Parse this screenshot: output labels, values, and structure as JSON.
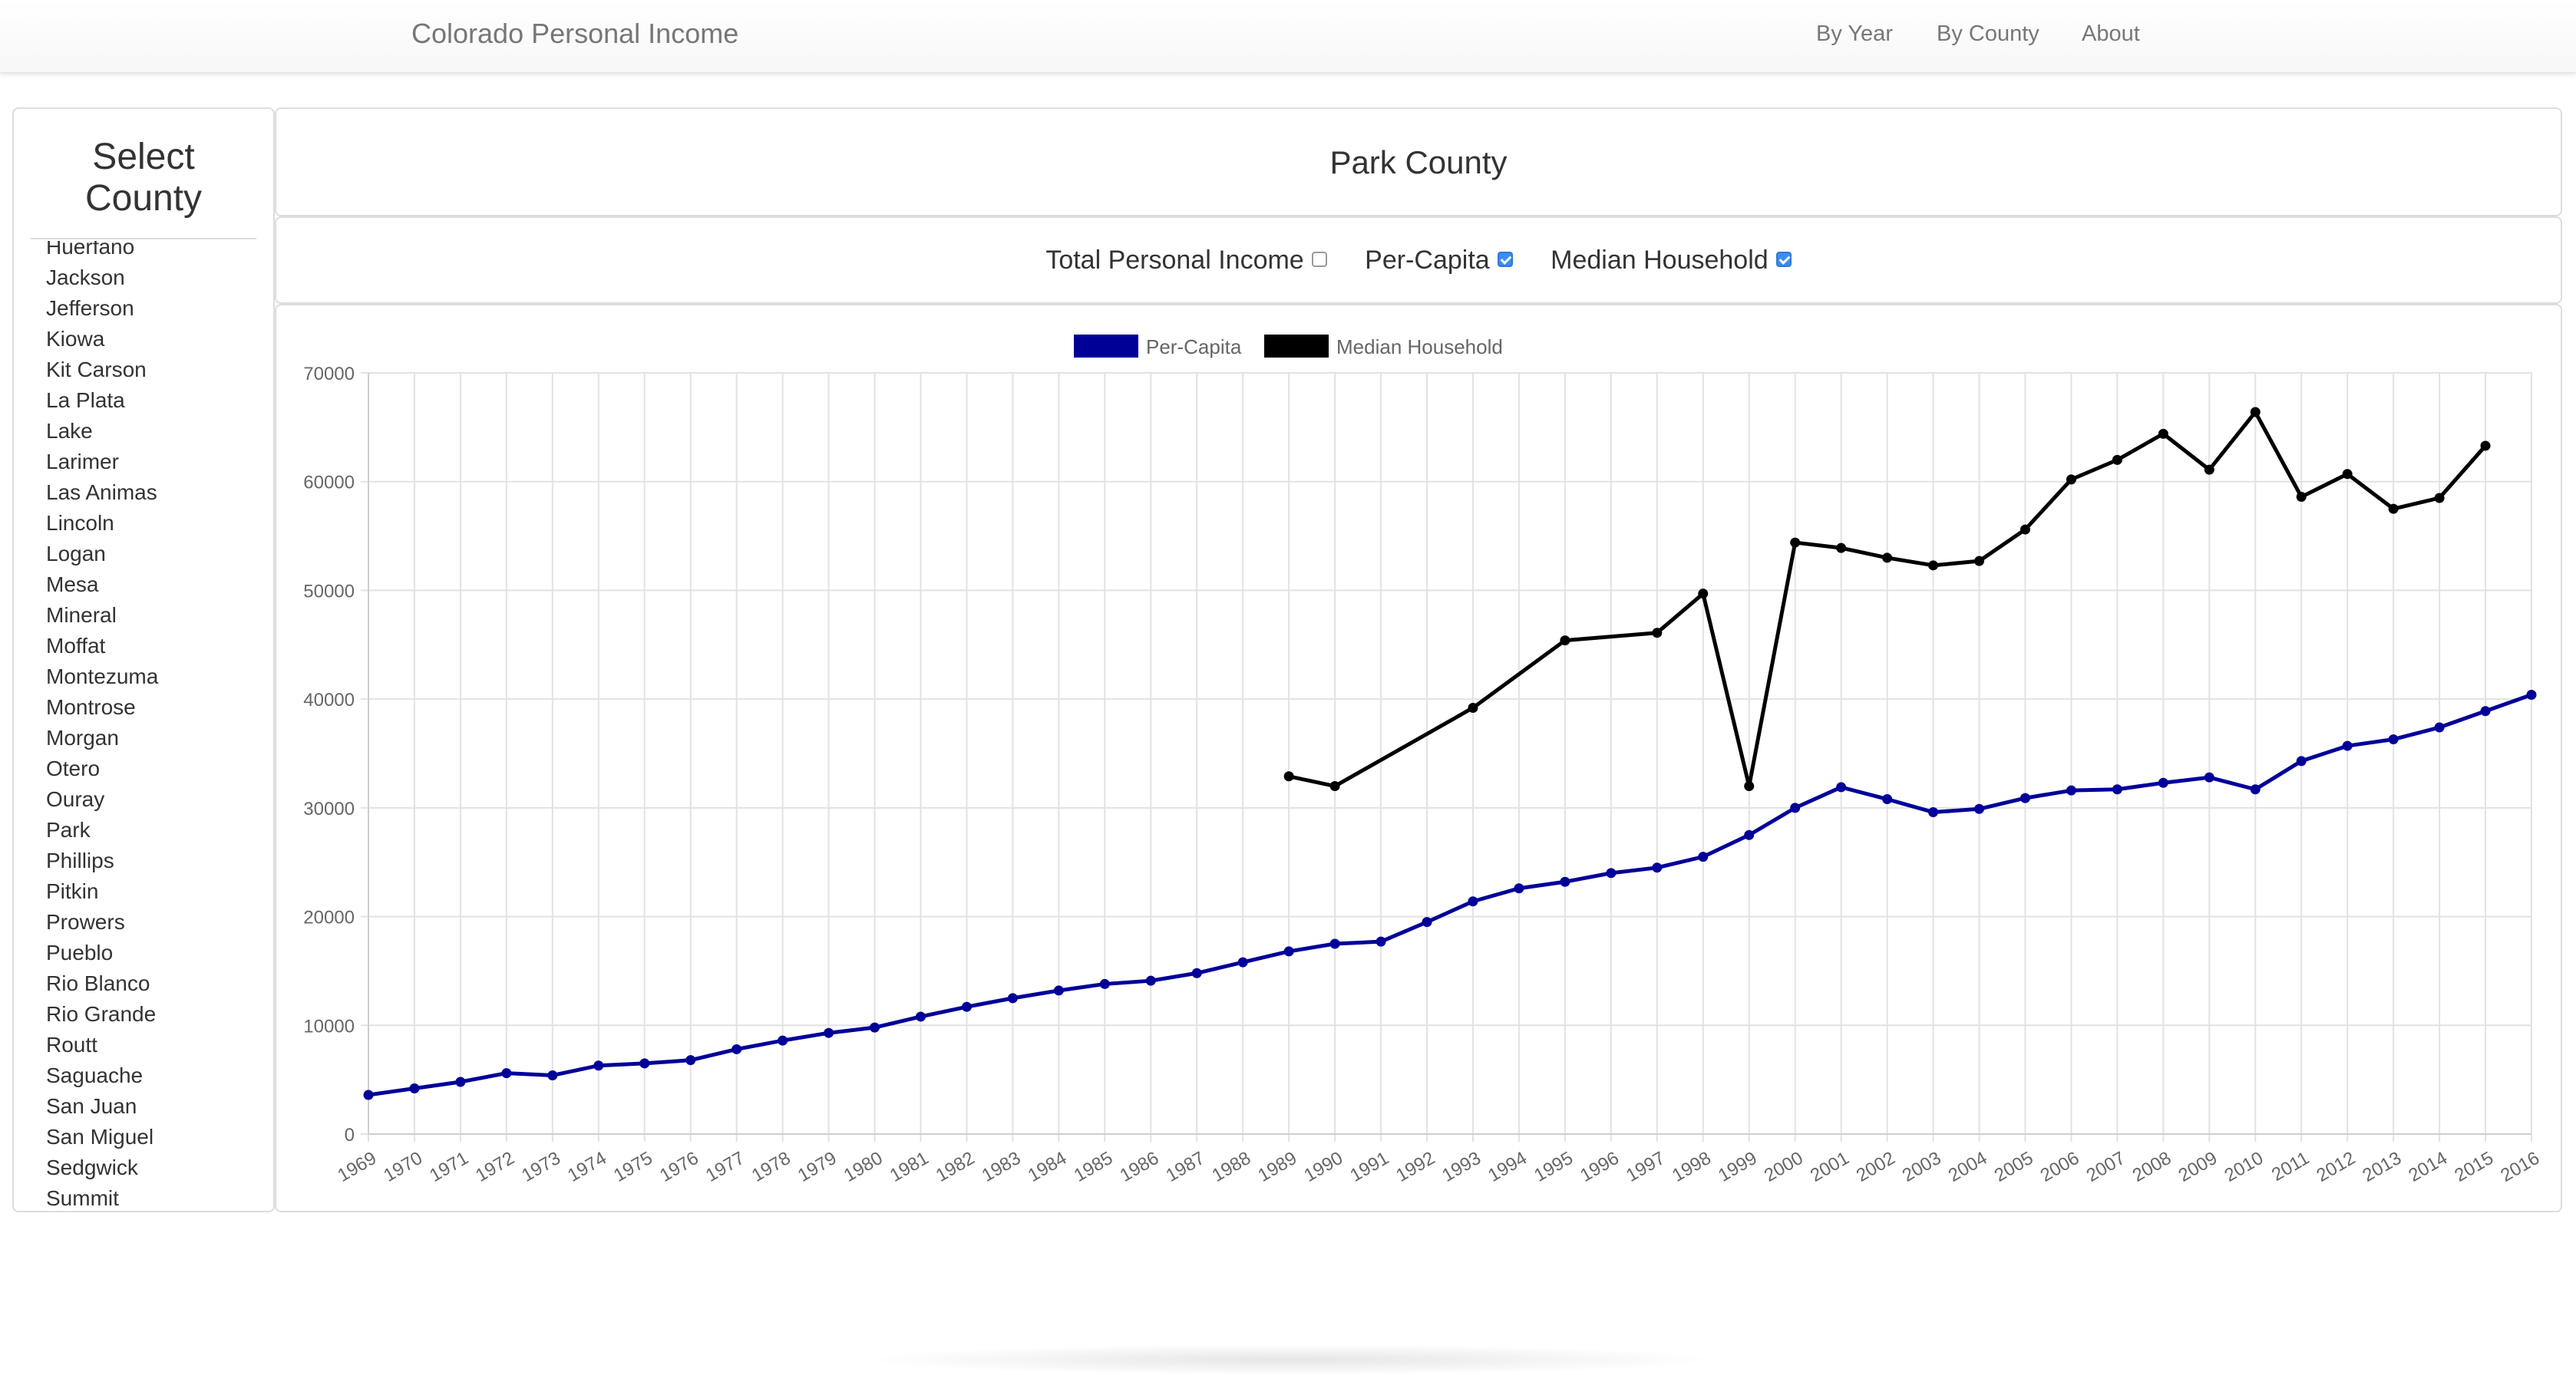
{
  "navbar": {
    "brand": "Colorado Personal Income",
    "links": [
      "By Year",
      "By County",
      "About"
    ]
  },
  "sidebar": {
    "title_line1": "Select",
    "title_line2": "County",
    "counties": [
      "Huerfano",
      "Jackson",
      "Jefferson",
      "Kiowa",
      "Kit Carson",
      "La Plata",
      "Lake",
      "Larimer",
      "Las Animas",
      "Lincoln",
      "Logan",
      "Mesa",
      "Mineral",
      "Moffat",
      "Montezuma",
      "Montrose",
      "Morgan",
      "Otero",
      "Ouray",
      "Park",
      "Phillips",
      "Pitkin",
      "Prowers",
      "Pueblo",
      "Rio Blanco",
      "Rio Grande",
      "Routt",
      "Saguache",
      "San Juan",
      "San Miguel",
      "Sedgwick",
      "Summit"
    ]
  },
  "page_title": "Park County",
  "filters": [
    {
      "label": "Total Personal Income",
      "checked": false
    },
    {
      "label": "Per-Capita",
      "checked": true
    },
    {
      "label": "Median Household",
      "checked": true
    }
  ],
  "colors": {
    "per_capita": "#000099",
    "median_household": "#000000",
    "checkbox_checked": "#3b8ef0"
  },
  "chart_data": {
    "type": "line",
    "x": [
      "1969",
      "1970",
      "1971",
      "1972",
      "1973",
      "1974",
      "1975",
      "1976",
      "1977",
      "1978",
      "1979",
      "1980",
      "1981",
      "1982",
      "1983",
      "1984",
      "1985",
      "1986",
      "1987",
      "1988",
      "1989",
      "1990",
      "1991",
      "1992",
      "1993",
      "1994",
      "1995",
      "1996",
      "1997",
      "1998",
      "1999",
      "2000",
      "2001",
      "2002",
      "2003",
      "2004",
      "2005",
      "2006",
      "2007",
      "2008",
      "2009",
      "2010",
      "2011",
      "2012",
      "2013",
      "2014",
      "2015",
      "2016"
    ],
    "ylim": [
      0,
      70000
    ],
    "yticks": [
      0,
      10000,
      20000,
      30000,
      40000,
      50000,
      60000,
      70000
    ],
    "grid": true,
    "legend_position": "top-center",
    "series": [
      {
        "name": "Per-Capita",
        "color": "#000099",
        "values": [
          3600,
          4200,
          4800,
          5600,
          5400,
          6300,
          6500,
          6800,
          7800,
          8600,
          9300,
          9800,
          10800,
          11700,
          12500,
          13200,
          13800,
          14100,
          14800,
          15800,
          16800,
          17500,
          17700,
          19500,
          21400,
          22600,
          23200,
          24000,
          24500,
          25500,
          27500,
          30000,
          31900,
          30800,
          29600,
          29900,
          30900,
          31600,
          31700,
          32300,
          32800,
          31700,
          34300,
          35700,
          36300,
          37400,
          38900,
          40400
        ]
      },
      {
        "name": "Median Household",
        "color": "#000000",
        "values": [
          null,
          null,
          null,
          null,
          null,
          null,
          null,
          null,
          null,
          null,
          null,
          null,
          null,
          null,
          null,
          null,
          null,
          null,
          null,
          null,
          32900,
          32000,
          null,
          null,
          39200,
          null,
          45400,
          null,
          46100,
          49700,
          32000,
          54400,
          53900,
          53000,
          52300,
          52700,
          55600,
          60200,
          62000,
          64400,
          61100,
          66400,
          58600,
          60700,
          57500,
          58500,
          63300,
          null
        ]
      }
    ]
  }
}
